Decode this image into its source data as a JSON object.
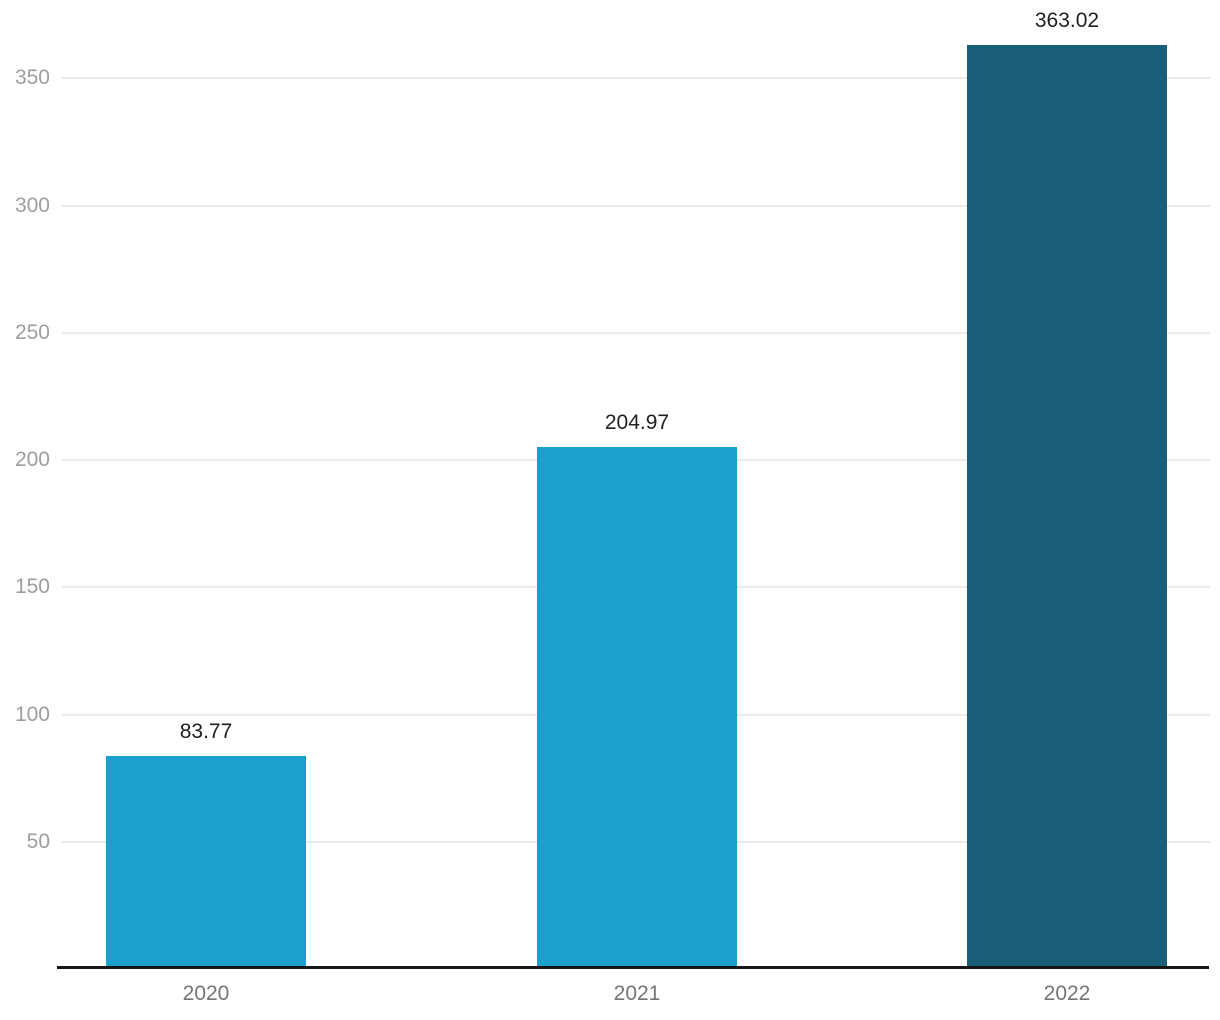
{
  "chart_data": {
    "type": "bar",
    "title": "",
    "xlabel": "",
    "ylabel": "",
    "categories": [
      "2020",
      "2021",
      "2022"
    ],
    "values": [
      83.77,
      204.97,
      363.02
    ],
    "value_labels": [
      "83.77",
      "204.97",
      "363.02"
    ],
    "y_ticks": [
      50,
      100,
      150,
      200,
      250,
      300,
      350
    ],
    "ylim": [
      0,
      380
    ],
    "grid": true,
    "legend_position": "none",
    "bar_colors": [
      "#1BA0CE",
      "#1BA0CE",
      "#1A5F7A"
    ],
    "colors": {
      "background": "#ffffff",
      "gridline": "#ebebeb",
      "axis_line": "#141414",
      "y_tick_label": "#9e9e9e",
      "category_label": "#757575",
      "value_label": "#1f1f1f"
    }
  }
}
